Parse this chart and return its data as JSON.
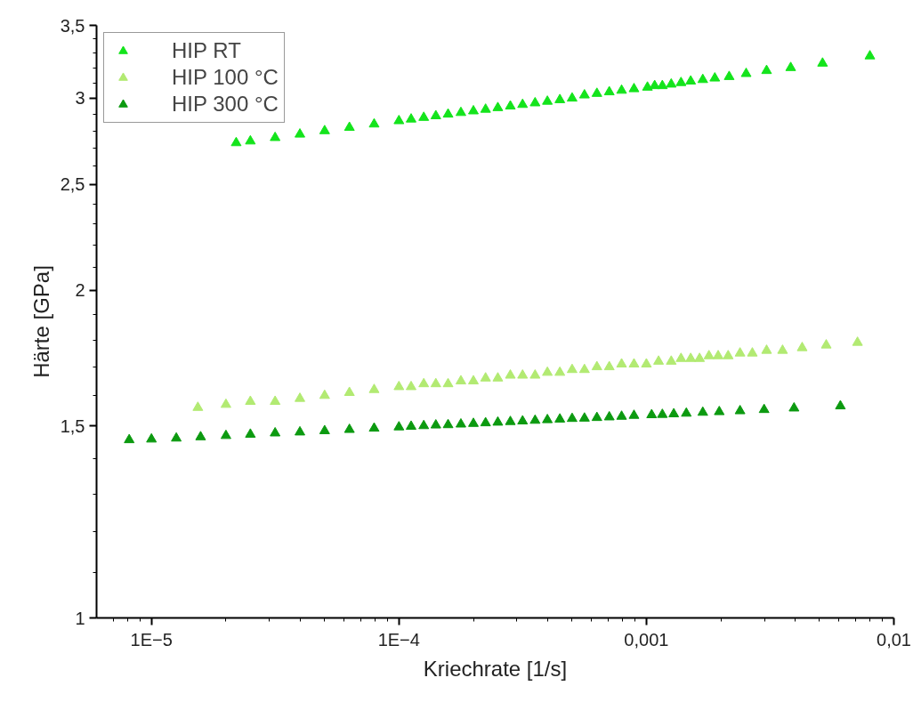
{
  "chart_data": {
    "type": "scatter",
    "xlabel": "Kriechrate [1/s]",
    "ylabel": "Härte [GPa]",
    "log": "xy",
    "grid": false,
    "legend": "top left",
    "marker": "triangle",
    "xlim": [
      6e-06,
      0.01
    ],
    "ylim": [
      1,
      3.5
    ],
    "xticks": [
      {
        "value": 1e-05,
        "label": "1E−5"
      },
      {
        "value": 0.0001,
        "label": "1E−4"
      },
      {
        "value": 0.001,
        "label": "0,001"
      },
      {
        "value": 0.01,
        "label": "0,01"
      },
      {
        "value": 7e-06,
        "label": null
      },
      {
        "value": 8e-06,
        "label": null
      },
      {
        "value": 9e-06,
        "label": null
      },
      {
        "value": 2e-05,
        "label": null
      },
      {
        "value": 3e-05,
        "label": null
      },
      {
        "value": 4e-05,
        "label": null
      },
      {
        "value": 5e-05,
        "label": null
      },
      {
        "value": 6e-05,
        "label": null
      },
      {
        "value": 7e-05,
        "label": null
      },
      {
        "value": 8e-05,
        "label": null
      },
      {
        "value": 9e-05,
        "label": null
      },
      {
        "value": 0.0002,
        "label": null
      },
      {
        "value": 0.0003,
        "label": null
      },
      {
        "value": 0.0004,
        "label": null
      },
      {
        "value": 0.0005,
        "label": null
      },
      {
        "value": 0.0006,
        "label": null
      },
      {
        "value": 0.0007,
        "label": null
      },
      {
        "value": 0.0008,
        "label": null
      },
      {
        "value": 0.0009,
        "label": null
      },
      {
        "value": 0.002,
        "label": null
      },
      {
        "value": 0.003,
        "label": null
      },
      {
        "value": 0.004,
        "label": null
      },
      {
        "value": 0.005,
        "label": null
      },
      {
        "value": 0.006,
        "label": null
      },
      {
        "value": 0.007,
        "label": null
      },
      {
        "value": 0.008,
        "label": null
      },
      {
        "value": 0.009,
        "label": null
      }
    ],
    "yticks": [
      1,
      {
        "value": 1.5,
        "label": "1,5"
      },
      2,
      {
        "value": 2.5,
        "label": "2,5"
      },
      3,
      {
        "value": 3.5,
        "label": "3,5"
      },
      {
        "value": 1.1,
        "label": null
      },
      {
        "value": 1.2,
        "label": null
      },
      {
        "value": 1.3,
        "label": null
      },
      {
        "value": 1.4,
        "label": null
      },
      {
        "value": 1.6,
        "label": null
      },
      {
        "value": 1.7,
        "label": null
      },
      {
        "value": 1.8,
        "label": null
      },
      {
        "value": 1.9,
        "label": null
      },
      {
        "value": 2.1,
        "label": null
      },
      {
        "value": 2.2,
        "label": null
      },
      {
        "value": 2.3,
        "label": null
      },
      {
        "value": 2.4,
        "label": null
      },
      {
        "value": 2.6,
        "label": null
      },
      {
        "value": 2.7,
        "label": null
      },
      {
        "value": 2.8,
        "label": null
      },
      {
        "value": 2.9,
        "label": null
      },
      {
        "value": 3.1,
        "label": null
      },
      {
        "value": 3.2,
        "label": null
      },
      {
        "value": 3.3,
        "label": null
      },
      {
        "value": 3.4,
        "label": null
      }
    ],
    "series": [
      {
        "name": "HIP RT",
        "color": "#14e41c",
        "x": [
          0.008,
          0.00515,
          0.00383,
          0.00306,
          0.00253,
          0.00216,
          0.00189,
          0.00169,
          0.00151,
          0.00138,
          0.00126,
          0.00116,
          0.00108,
          0.00101,
          0.000891,
          0.000794,
          0.000708,
          0.000631,
          0.000562,
          0.000501,
          0.000447,
          0.000398,
          0.000355,
          0.000316,
          0.000282,
          0.000251,
          0.000224,
          0.0002,
          0.000178,
          0.000158,
          0.000141,
          0.000126,
          0.000112,
          0.0001,
          7.94e-05,
          6.31e-05,
          5.01e-05,
          3.98e-05,
          3.16e-05,
          2.51e-05,
          2.2e-05
        ],
        "values": [
          3.28,
          3.23,
          3.2,
          3.18,
          3.16,
          3.14,
          3.13,
          3.12,
          3.11,
          3.1,
          3.09,
          3.08,
          3.08,
          3.07,
          3.06,
          3.05,
          3.04,
          3.03,
          3.02,
          3.0,
          2.99,
          2.98,
          2.97,
          2.96,
          2.95,
          2.94,
          2.93,
          2.92,
          2.91,
          2.9,
          2.89,
          2.88,
          2.87,
          2.86,
          2.84,
          2.82,
          2.8,
          2.78,
          2.76,
          2.74,
          2.73
        ]
      },
      {
        "name": "HIP 100 °C",
        "color": "#b2ea72",
        "x": [
          0.00713,
          0.00533,
          0.00426,
          0.00355,
          0.00306,
          0.00268,
          0.00239,
          0.00214,
          0.00195,
          0.00179,
          0.00164,
          0.00151,
          0.00138,
          0.00126,
          0.00112,
          0.001,
          0.000891,
          0.000794,
          0.000708,
          0.000631,
          0.000562,
          0.000501,
          0.000447,
          0.000398,
          0.000355,
          0.000316,
          0.000282,
          0.000251,
          0.000224,
          0.0002,
          0.000178,
          0.000158,
          0.000141,
          0.000126,
          0.000112,
          0.0001,
          7.94e-05,
          6.31e-05,
          5.01e-05,
          3.98e-05,
          3.16e-05,
          2.51e-05,
          2e-05,
          1.54e-05
        ],
        "values": [
          1.79,
          1.78,
          1.77,
          1.76,
          1.76,
          1.75,
          1.75,
          1.74,
          1.74,
          1.74,
          1.73,
          1.73,
          1.73,
          1.72,
          1.72,
          1.71,
          1.71,
          1.71,
          1.7,
          1.7,
          1.69,
          1.69,
          1.68,
          1.68,
          1.67,
          1.67,
          1.67,
          1.66,
          1.66,
          1.65,
          1.65,
          1.64,
          1.64,
          1.64,
          1.63,
          1.63,
          1.62,
          1.61,
          1.6,
          1.59,
          1.58,
          1.58,
          1.57,
          1.56
        ]
      },
      {
        "name": "HIP 300 °C",
        "color": "#0c9a10",
        "x": [
          0.00608,
          0.00395,
          0.00299,
          0.00239,
          0.00197,
          0.00169,
          0.00145,
          0.00129,
          0.00116,
          0.00105,
          0.000891,
          0.000794,
          0.000708,
          0.000631,
          0.000562,
          0.000501,
          0.000447,
          0.000398,
          0.000355,
          0.000316,
          0.000282,
          0.000251,
          0.000224,
          0.0002,
          0.000178,
          0.000158,
          0.000141,
          0.000126,
          0.000112,
          0.0001,
          7.94e-05,
          6.31e-05,
          5.01e-05,
          3.98e-05,
          3.16e-05,
          2.51e-05,
          2e-05,
          1.58e-05,
          1.26e-05,
          1e-05,
          8.13e-06
        ],
        "values": [
          1.565,
          1.558,
          1.553,
          1.549,
          1.546,
          1.544,
          1.541,
          1.539,
          1.537,
          1.536,
          1.534,
          1.531,
          1.529,
          1.527,
          1.525,
          1.524,
          1.522,
          1.52,
          1.518,
          1.516,
          1.514,
          1.512,
          1.51,
          1.508,
          1.506,
          1.504,
          1.503,
          1.501,
          1.499,
          1.497,
          1.493,
          1.489,
          1.485,
          1.481,
          1.478,
          1.474,
          1.47,
          1.466,
          1.462,
          1.459,
          1.457
        ]
      }
    ]
  }
}
